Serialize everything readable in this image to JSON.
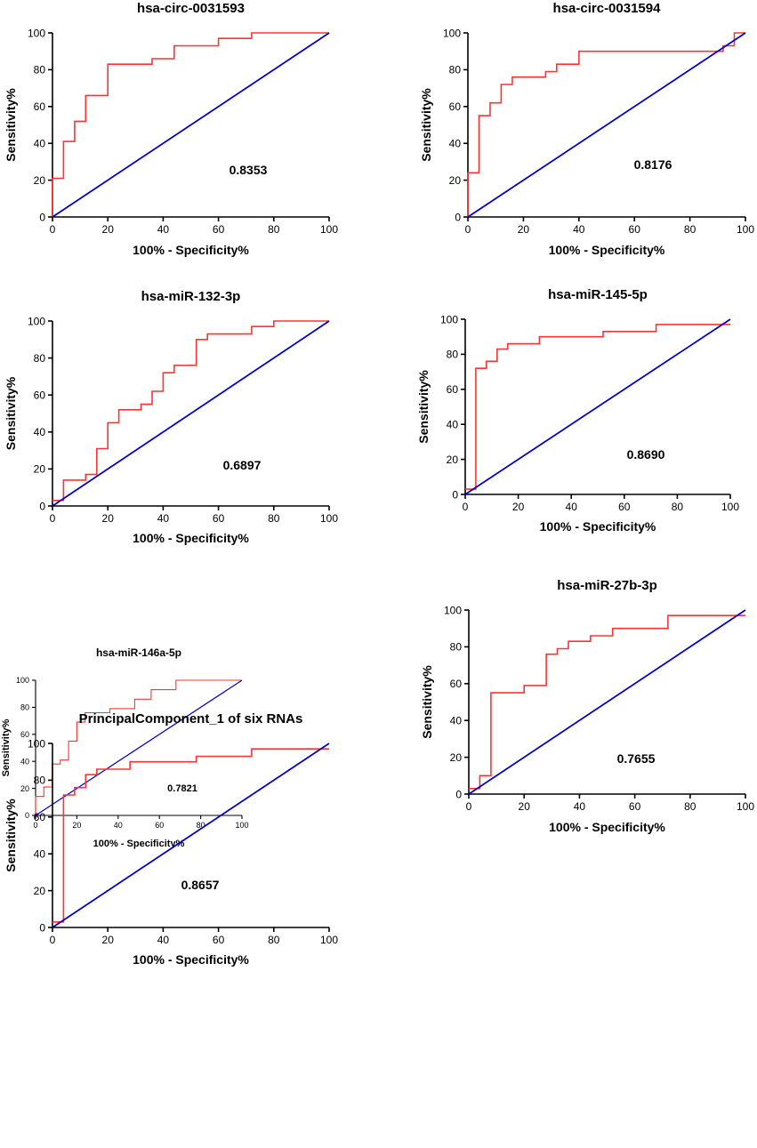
{
  "figure": {
    "panel_count": 7
  },
  "colors": {
    "roc_line": "#ff3333",
    "reference_line": "#0000cc",
    "axis": "#000000",
    "background": "#ffffff"
  },
  "chart_data": [
    {
      "type": "line",
      "title": "hsa-circ-0031593",
      "xlabel": "100% - Specificity%",
      "ylabel": "Sensitivity%",
      "xlim": [
        0,
        100
      ],
      "ylim": [
        0,
        100
      ],
      "xticks": [
        "0",
        "20",
        "40",
        "60",
        "80",
        "100"
      ],
      "yticks": [
        "0",
        "20",
        "40",
        "60",
        "80",
        "100"
      ],
      "auc_label": "0.8353",
      "series": [
        {
          "name": "ROC curve",
          "x": [
            0,
            0,
            4,
            4,
            8,
            8,
            12,
            12,
            20,
            20,
            36,
            36,
            44,
            44,
            60,
            60,
            72,
            72,
            100
          ],
          "y": [
            0,
            21,
            21,
            41,
            41,
            52,
            52,
            66,
            66,
            83,
            83,
            86,
            86,
            93,
            93,
            97,
            97,
            100,
            100
          ]
        },
        {
          "name": "Reference line",
          "x": [
            0,
            100
          ],
          "y": [
            0,
            100
          ]
        }
      ]
    },
    {
      "type": "line",
      "title": "hsa-circ-0031594",
      "xlabel": "100% - Specificity%",
      "ylabel": "Sensitivity%",
      "xlim": [
        0,
        100
      ],
      "ylim": [
        0,
        100
      ],
      "xticks": [
        "0",
        "20",
        "40",
        "60",
        "80",
        "100"
      ],
      "yticks": [
        "0",
        "20",
        "40",
        "60",
        "80",
        "100"
      ],
      "auc_label": "0.8176",
      "series": [
        {
          "name": "ROC curve",
          "x": [
            0,
            0,
            4,
            4,
            8,
            8,
            12,
            12,
            16,
            16,
            28,
            28,
            32,
            32,
            40,
            40,
            92,
            92,
            96,
            96,
            100
          ],
          "y": [
            0,
            24,
            24,
            55,
            55,
            62,
            62,
            72,
            72,
            76,
            76,
            79,
            79,
            83,
            83,
            90,
            90,
            93,
            93,
            100,
            100
          ]
        },
        {
          "name": "Reference line",
          "x": [
            0,
            100
          ],
          "y": [
            0,
            100
          ]
        }
      ]
    },
    {
      "type": "line",
      "title": "hsa-miR-132-3p",
      "xlabel": "100% - Specificity%",
      "ylabel": "Sensitivity%",
      "xlim": [
        0,
        100
      ],
      "ylim": [
        0,
        100
      ],
      "xticks": [
        "0",
        "20",
        "40",
        "60",
        "80",
        "100"
      ],
      "yticks": [
        "0",
        "20",
        "40",
        "60",
        "80",
        "100"
      ],
      "auc_label": "0.6897",
      "series": [
        {
          "name": "ROC curve",
          "x": [
            0,
            4,
            4,
            12,
            12,
            16,
            16,
            20,
            20,
            24,
            24,
            32,
            32,
            36,
            36,
            40,
            40,
            44,
            44,
            52,
            52,
            56,
            56,
            72,
            72,
            80,
            80,
            100
          ],
          "y": [
            3,
            3,
            14,
            14,
            17,
            17,
            31,
            31,
            45,
            45,
            52,
            52,
            55,
            55,
            62,
            62,
            72,
            72,
            76,
            76,
            90,
            90,
            93,
            93,
            97,
            97,
            100,
            100
          ]
        },
        {
          "name": "Reference line",
          "x": [
            0,
            100
          ],
          "y": [
            0,
            100
          ]
        }
      ]
    },
    {
      "type": "line",
      "title": "hsa-miR-145-5p",
      "xlabel": "100% - Specificity%",
      "ylabel": "Sensitivity%",
      "xlim": [
        0,
        100
      ],
      "ylim": [
        0,
        100
      ],
      "xticks": [
        "0",
        "20",
        "40",
        "60",
        "80",
        "100"
      ],
      "yticks": [
        "0",
        "20",
        "40",
        "60",
        "80",
        "100"
      ],
      "auc_label": "0.8690",
      "series": [
        {
          "name": "ROC curve",
          "x": [
            0,
            4,
            4,
            8,
            8,
            12,
            12,
            16,
            16,
            28,
            28,
            52,
            52,
            72,
            72,
            100
          ],
          "y": [
            3,
            3,
            72,
            72,
            76,
            76,
            83,
            83,
            86,
            86,
            90,
            90,
            93,
            93,
            97,
            97
          ]
        },
        {
          "name": "Reference line",
          "x": [
            0,
            100
          ],
          "y": [
            0,
            100
          ]
        }
      ]
    },
    {
      "type": "line",
      "title": "hsa-miR-146a-5p",
      "xlabel": "100% - Specificity%",
      "ylabel": "Sensitivity%",
      "xlim": [
        0,
        100
      ],
      "ylim": [
        0,
        100
      ],
      "xticks": [
        "0",
        "20",
        "40",
        "60",
        "80",
        "100"
      ],
      "yticks": [
        "0",
        "20",
        "40",
        "60",
        "80",
        "100"
      ],
      "auc_label": "0.7821",
      "series": [
        {
          "name": "ROC curve",
          "x": [
            0,
            0,
            4,
            4,
            8,
            8,
            12,
            12,
            16,
            16,
            20,
            20,
            24,
            24,
            36,
            36,
            48,
            48,
            56,
            56,
            68,
            68,
            100
          ],
          "y": [
            0,
            14,
            14,
            21,
            21,
            38,
            38,
            41,
            41,
            55,
            55,
            69,
            69,
            76,
            76,
            79,
            79,
            86,
            86,
            93,
            93,
            100,
            100
          ]
        },
        {
          "name": "Reference line",
          "x": [
            0,
            100
          ],
          "y": [
            0,
            100
          ]
        }
      ]
    },
    {
      "type": "line",
      "title": "hsa-miR-27b-3p",
      "xlabel": "100% - Specificity%",
      "ylabel": "Sensitivity%",
      "xlim": [
        0,
        100
      ],
      "ylim": [
        0,
        100
      ],
      "xticks": [
        "0",
        "20",
        "40",
        "60",
        "80",
        "100"
      ],
      "yticks": [
        "0",
        "20",
        "40",
        "60",
        "80",
        "100"
      ],
      "auc_label": "0.7655",
      "series": [
        {
          "name": "ROC curve",
          "x": [
            0,
            4,
            4,
            8,
            8,
            20,
            20,
            28,
            28,
            32,
            32,
            36,
            36,
            44,
            44,
            52,
            52,
            72,
            72,
            100
          ],
          "y": [
            3,
            3,
            10,
            10,
            55,
            55,
            59,
            59,
            76,
            76,
            79,
            79,
            83,
            83,
            86,
            86,
            90,
            90,
            97,
            97
          ]
        },
        {
          "name": "Reference line",
          "x": [
            0,
            100
          ],
          "y": [
            0,
            100
          ]
        }
      ]
    },
    {
      "type": "line",
      "title": "PrincipalComponent_1 of six RNAs",
      "xlabel": "100% - Specificity%",
      "ylabel": "Sensitivity%",
      "xlim": [
        0,
        100
      ],
      "ylim": [
        0,
        100
      ],
      "xticks": [
        "0",
        "20",
        "40",
        "60",
        "80",
        "100"
      ],
      "yticks": [
        "0",
        "20",
        "40",
        "60",
        "80",
        "100"
      ],
      "auc_label": "0.8657",
      "series": [
        {
          "name": "ROC curve",
          "x": [
            0,
            4,
            4,
            8,
            8,
            12,
            12,
            16,
            16,
            28,
            28,
            52,
            52,
            72,
            72,
            100
          ],
          "y": [
            3,
            3,
            72,
            72,
            76,
            76,
            83,
            83,
            86,
            86,
            90,
            90,
            93,
            93,
            97,
            97
          ]
        },
        {
          "name": "Reference line",
          "x": [
            0,
            100
          ],
          "y": [
            0,
            100
          ]
        }
      ]
    }
  ]
}
